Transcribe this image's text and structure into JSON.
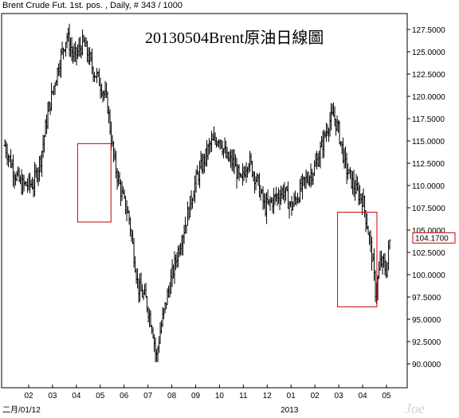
{
  "header": {
    "label": "Brent Crude Fut. 1st. pos. , Daily, # 343 / 1000"
  },
  "watermark": "Joe",
  "chart_data": {
    "type": "ohlc-bar",
    "title": "20130504Brent原油日線圖",
    "y_ticks": [
      "127.5000",
      "125.0000",
      "122.5000",
      "120.0000",
      "117.5000",
      "115.0000",
      "112.5000",
      "110.0000",
      "107.5000",
      "105.0000",
      "102.5000",
      "100.0000",
      "97.5000",
      "95.0000",
      "92.5000",
      "90.0000"
    ],
    "ylim": [
      87.5,
      129.0
    ],
    "x_ticks": [
      "02",
      "03",
      "04",
      "05",
      "06",
      "07",
      "08",
      "09",
      "10",
      "11",
      "12",
      "01",
      "02",
      "03",
      "04",
      "05"
    ],
    "x_sublabels": [
      {
        "text": "二月/01/12",
        "month_index": 0
      },
      {
        "text": "2013",
        "month_index": 11
      }
    ],
    "last_price": "104.1700",
    "colors": {
      "bars": "#000000",
      "highlight_box": "#cc0000",
      "grid": "#000000"
    },
    "highlight_boxes": [
      {
        "x_from": 2.05,
        "x_to": 3.45,
        "y_from": 105.9,
        "y_to": 114.7
      },
      {
        "x_from": 12.95,
        "x_to": 14.6,
        "y_from": 96.4,
        "y_to": 107.0
      }
    ],
    "price_path": [
      [
        -1.0,
        114.5
      ],
      [
        -0.6,
        111.5
      ],
      [
        -0.3,
        110.0
      ],
      [
        0.2,
        110.2
      ],
      [
        0.5,
        113.0
      ],
      [
        0.8,
        118.0
      ],
      [
        1.0,
        120.5
      ],
      [
        1.3,
        124.0
      ],
      [
        1.6,
        126.8
      ],
      [
        1.9,
        124.3
      ],
      [
        2.3,
        126.0
      ],
      [
        2.7,
        123.0
      ],
      [
        3.0,
        121.5
      ],
      [
        3.3,
        119.2
      ],
      [
        3.45,
        115.5
      ],
      [
        3.6,
        112.5
      ],
      [
        3.9,
        109.0
      ],
      [
        4.2,
        106.5
      ],
      [
        4.4,
        102.5
      ],
      [
        4.6,
        98.5
      ],
      [
        4.9,
        97.3
      ],
      [
        5.2,
        94.0
      ],
      [
        5.35,
        90.5
      ],
      [
        5.5,
        93.5
      ],
      [
        5.8,
        97.5
      ],
      [
        6.2,
        102.0
      ],
      [
        6.6,
        106.0
      ],
      [
        7.0,
        110.5
      ],
      [
        7.3,
        112.5
      ],
      [
        7.6,
        114.5
      ],
      [
        8.0,
        115.5
      ],
      [
        8.3,
        113.0
      ],
      [
        8.6,
        112.5
      ],
      [
        8.9,
        110.2
      ],
      [
        9.2,
        113.0
      ],
      [
        9.6,
        110.3
      ],
      [
        9.9,
        107.5
      ],
      [
        10.3,
        108.5
      ],
      [
        10.7,
        109.5
      ],
      [
        11.0,
        107.5
      ],
      [
        11.3,
        109.0
      ],
      [
        11.6,
        110.5
      ],
      [
        12.0,
        112.0
      ],
      [
        12.3,
        114.5
      ],
      [
        12.6,
        117.2
      ],
      [
        12.8,
        117.8
      ],
      [
        13.0,
        116.0
      ],
      [
        13.3,
        112.0
      ],
      [
        13.7,
        109.5
      ],
      [
        14.0,
        108.5
      ],
      [
        14.2,
        105.5
      ],
      [
        14.4,
        102.0
      ],
      [
        14.55,
        97.8
      ],
      [
        14.75,
        101.5
      ],
      [
        15.0,
        100.5
      ],
      [
        15.15,
        104.0
      ]
    ]
  }
}
